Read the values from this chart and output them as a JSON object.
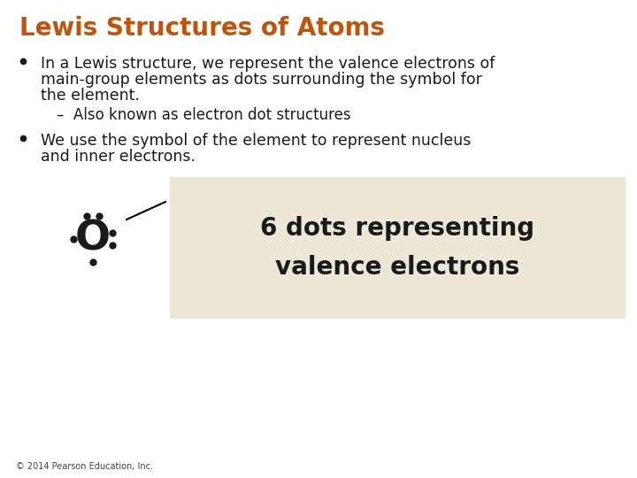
{
  "title": "Lewis Structures of Atoms",
  "title_color": "#c0540a",
  "title_fontsize": 20,
  "bg_color": "#ffffff",
  "bullet1_line1": "In a Lewis structure, we represent the valence electrons of",
  "bullet1_line2": "main-group elements as dots surrounding the symbol for",
  "bullet1_line3": "the element.",
  "bullet1_sub": "–  Also known as electron dot structures",
  "bullet2_line1": "We use the symbol of the element to represent nucleus",
  "bullet2_line2": "and inner electrons.",
  "box_color": "#ede8d5",
  "box_text1": "6 dots representing",
  "box_text2": "valence electrons",
  "box_text_color": "#1a1a1a",
  "footer": "© 2014 Pearson Education, Inc.",
  "text_color": "#1a1a1a",
  "text_fontsize": 12.5,
  "sub_fontsize": 12.0
}
